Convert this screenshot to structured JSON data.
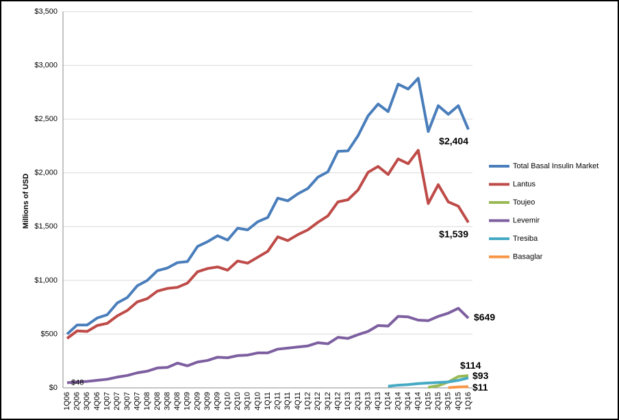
{
  "chart_data": {
    "type": "line",
    "y_label": "Millions of USD",
    "categories": [
      "1Q06",
      "2Q06",
      "3Q06",
      "4Q06",
      "1Q07",
      "2Q07",
      "3Q07",
      "4Q07",
      "1Q08",
      "2Q08",
      "3Q08",
      "4Q08",
      "1Q09",
      "2Q09",
      "3Q09",
      "4Q09",
      "1Q10",
      "2Q10",
      "3Q10",
      "4Q10",
      "1Q11",
      "2Q11",
      "3Q11",
      "4Q11",
      "1Q12",
      "2Q12",
      "3Q12",
      "4Q12",
      "1Q13",
      "2Q13",
      "3Q13",
      "4Q13",
      "1Q14",
      "2Q14",
      "3Q14",
      "4Q14",
      "1Q15",
      "2Q15",
      "3Q15",
      "4Q15",
      "1Q16"
    ],
    "ylim": [
      0,
      3500
    ],
    "yticks": [
      {
        "value": 0,
        "label": "$0"
      },
      {
        "value": 500,
        "label": "$500"
      },
      {
        "value": 1000,
        "label": "$1,000"
      },
      {
        "value": 1500,
        "label": "$1,500"
      },
      {
        "value": 2000,
        "label": "$2,000"
      },
      {
        "value": 2500,
        "label": "$2,500"
      },
      {
        "value": 3000,
        "label": "$3,000"
      },
      {
        "value": 3500,
        "label": "$3,500"
      }
    ],
    "grid": true,
    "legend": "right",
    "series": [
      {
        "name": "Total Basal Insulin Market",
        "color": "#4a7ebb",
        "values": [
          500,
          585,
          585,
          650,
          680,
          790,
          840,
          950,
          1000,
          1090,
          1115,
          1165,
          1175,
          1315,
          1360,
          1415,
          1375,
          1485,
          1470,
          1545,
          1585,
          1765,
          1740,
          1805,
          1855,
          1960,
          2010,
          2200,
          2205,
          2345,
          2530,
          2640,
          2570,
          2825,
          2780,
          2880,
          2385,
          2625,
          2545,
          2625,
          2404
        ],
        "value_labels": [
          null,
          null,
          null,
          null,
          null,
          null,
          null,
          null,
          null,
          null,
          null,
          null,
          null,
          null,
          null,
          null,
          null,
          null,
          null,
          null,
          null,
          null,
          null,
          null,
          null,
          null,
          null,
          null,
          null,
          null,
          null,
          null,
          null,
          null,
          null,
          null,
          null,
          null,
          null,
          null,
          "$2,404"
        ]
      },
      {
        "name": "Lantus",
        "color": "#be4b48",
        "values": [
          460,
          530,
          525,
          580,
          600,
          670,
          720,
          800,
          830,
          900,
          925,
          935,
          975,
          1080,
          1110,
          1125,
          1095,
          1180,
          1160,
          1215,
          1270,
          1405,
          1370,
          1425,
          1470,
          1540,
          1600,
          1730,
          1750,
          1840,
          2005,
          2060,
          1985,
          2130,
          2085,
          2210,
          1715,
          1890,
          1730,
          1690,
          1539
        ],
        "value_labels": [
          null,
          null,
          null,
          null,
          null,
          null,
          null,
          null,
          null,
          null,
          null,
          null,
          null,
          null,
          null,
          null,
          null,
          null,
          null,
          null,
          null,
          null,
          null,
          null,
          null,
          null,
          null,
          null,
          null,
          null,
          null,
          null,
          null,
          null,
          null,
          null,
          null,
          null,
          null,
          null,
          "$1,539"
        ]
      },
      {
        "name": "Toujeo",
        "color": "#98b954",
        "values": [
          null,
          null,
          null,
          null,
          null,
          null,
          null,
          null,
          null,
          null,
          null,
          null,
          null,
          null,
          null,
          null,
          null,
          null,
          null,
          null,
          null,
          null,
          null,
          null,
          null,
          null,
          null,
          null,
          null,
          null,
          null,
          null,
          null,
          null,
          null,
          null,
          5,
          20,
          55,
          105,
          114
        ],
        "value_labels": [
          null,
          null,
          null,
          null,
          null,
          null,
          null,
          null,
          null,
          null,
          null,
          null,
          null,
          null,
          null,
          null,
          null,
          null,
          null,
          null,
          null,
          null,
          null,
          null,
          null,
          null,
          null,
          null,
          null,
          null,
          null,
          null,
          null,
          null,
          null,
          null,
          null,
          null,
          null,
          null,
          "$114"
        ]
      },
      {
        "name": "Levemir",
        "color": "#7d5fa0",
        "values": [
          48,
          55,
          60,
          70,
          80,
          100,
          115,
          140,
          155,
          185,
          190,
          230,
          205,
          240,
          255,
          285,
          280,
          300,
          305,
          325,
          325,
          360,
          370,
          380,
          390,
          420,
          410,
          470,
          460,
          495,
          525,
          580,
          575,
          665,
          660,
          630,
          625,
          665,
          695,
          740,
          649
        ],
        "value_labels": [
          "$48",
          null,
          null,
          null,
          null,
          null,
          null,
          null,
          null,
          null,
          null,
          null,
          null,
          null,
          null,
          null,
          null,
          null,
          null,
          null,
          null,
          null,
          null,
          null,
          null,
          null,
          null,
          null,
          null,
          null,
          null,
          null,
          null,
          null,
          null,
          null,
          null,
          null,
          null,
          null,
          "$649"
        ]
      },
      {
        "name": "Tresiba",
        "color": "#46aac5",
        "values": [
          null,
          null,
          null,
          null,
          null,
          null,
          null,
          null,
          null,
          null,
          null,
          null,
          null,
          null,
          null,
          null,
          null,
          null,
          null,
          null,
          null,
          null,
          null,
          null,
          null,
          null,
          null,
          null,
          null,
          null,
          null,
          null,
          15,
          25,
          30,
          40,
          45,
          50,
          55,
          70,
          93
        ],
        "value_labels": [
          null,
          null,
          null,
          null,
          null,
          null,
          null,
          null,
          null,
          null,
          null,
          null,
          null,
          null,
          null,
          null,
          null,
          null,
          null,
          null,
          null,
          null,
          null,
          null,
          null,
          null,
          null,
          null,
          null,
          null,
          null,
          null,
          null,
          null,
          null,
          null,
          null,
          null,
          null,
          null,
          "$93"
        ]
      },
      {
        "name": "Basaglar",
        "color": "#f79646",
        "values": [
          null,
          null,
          null,
          null,
          null,
          null,
          null,
          null,
          null,
          null,
          null,
          null,
          null,
          null,
          null,
          null,
          null,
          null,
          null,
          null,
          null,
          null,
          null,
          null,
          null,
          null,
          null,
          null,
          null,
          null,
          null,
          null,
          null,
          null,
          null,
          null,
          null,
          null,
          2,
          8,
          11
        ],
        "value_labels": [
          null,
          null,
          null,
          null,
          null,
          null,
          null,
          null,
          null,
          null,
          null,
          null,
          null,
          null,
          null,
          null,
          null,
          null,
          null,
          null,
          null,
          null,
          null,
          null,
          null,
          null,
          null,
          null,
          null,
          null,
          null,
          null,
          null,
          null,
          null,
          null,
          null,
          null,
          null,
          null,
          "$11"
        ]
      }
    ]
  }
}
